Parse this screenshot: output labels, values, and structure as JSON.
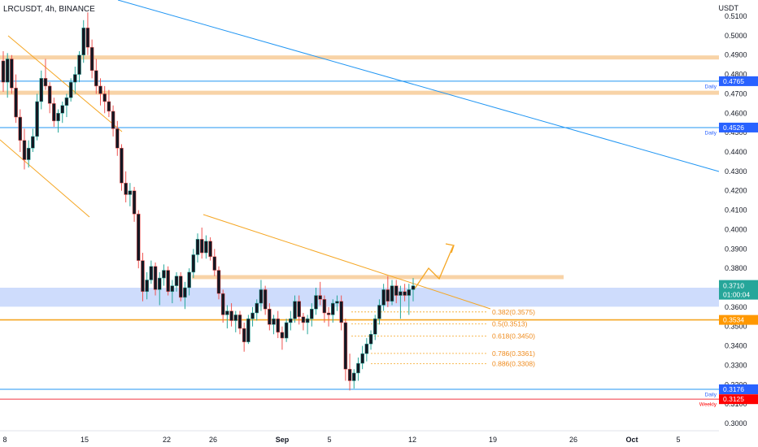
{
  "header": {
    "symbol_info": "LRCUSDT, 4h, BINANCE",
    "currency": "USDT"
  },
  "price_axis": {
    "ticks": [
      "0.5100",
      "0.5000",
      "0.4900",
      "0.4800",
      "0.4700",
      "0.4600",
      "0.4500",
      "0.4400",
      "0.4300",
      "0.4200",
      "0.4100",
      "0.4000",
      "0.3900",
      "0.3800",
      "0.3700",
      "0.3600",
      "0.3500",
      "0.3400",
      "0.3300",
      "0.3200",
      "0.3100",
      "0.3000"
    ]
  },
  "time_axis": {
    "labels": [
      "8",
      "15",
      "22",
      "26",
      "Sep",
      "5",
      "12",
      "19",
      "26",
      "Oct",
      "5"
    ]
  },
  "price_tags": [
    {
      "label": "0.4765",
      "note": "Daily",
      "color": "#2962ff"
    },
    {
      "label": "0.4526",
      "note": "Daily",
      "color": "#2962ff"
    },
    {
      "label": "0.3710",
      "sublabel": "01:00:04",
      "color": "#26a69a"
    },
    {
      "label": "0.3534",
      "color": "#ff9800"
    },
    {
      "label": "0.3176",
      "note": "Daily",
      "color": "#2962ff"
    },
    {
      "label": "0.3125",
      "note": "Weekly",
      "color": "#ff0000"
    }
  ],
  "fib_levels": [
    {
      "label": "0.382(0.3575)"
    },
    {
      "label": "0.5(0.3513)"
    },
    {
      "label": "0.618(0.3450)"
    },
    {
      "label": "0.786(0.3361)"
    },
    {
      "label": "0.886(0.3308)"
    }
  ],
  "colors": {
    "up": "#26a69a",
    "down": "#ef5350",
    "candle_body": "#131722",
    "zone_orange": "#f5c489",
    "zone_blue": "#b9cdfb",
    "line_blue": "#2196f3",
    "line_orange": "#f5a623",
    "line_red": "#f23645"
  },
  "chart_data": {
    "type": "candlestick",
    "title": "LRCUSDT, 4h, BINANCE",
    "ylabel": "USDT",
    "ylim": [
      0.297,
      0.5125
    ],
    "y_scale": "linear",
    "grid": false,
    "candles": [
      [
        0.487,
        0.492,
        0.471,
        0.476
      ],
      [
        0.476,
        0.491,
        0.468,
        0.488
      ],
      [
        0.488,
        0.49,
        0.47,
        0.473
      ],
      [
        0.473,
        0.48,
        0.455,
        0.458
      ],
      [
        0.458,
        0.462,
        0.44,
        0.446
      ],
      [
        0.446,
        0.452,
        0.431,
        0.436
      ],
      [
        0.436,
        0.446,
        0.432,
        0.442
      ],
      [
        0.442,
        0.452,
        0.44,
        0.448
      ],
      [
        0.448,
        0.47,
        0.446,
        0.466
      ],
      [
        0.466,
        0.482,
        0.462,
        0.478
      ],
      [
        0.478,
        0.488,
        0.472,
        0.474
      ],
      [
        0.474,
        0.476,
        0.46,
        0.465
      ],
      [
        0.465,
        0.468,
        0.453,
        0.456
      ],
      [
        0.456,
        0.462,
        0.45,
        0.46
      ],
      [
        0.46,
        0.466,
        0.455,
        0.464
      ],
      [
        0.464,
        0.47,
        0.458,
        0.468
      ],
      [
        0.468,
        0.478,
        0.466,
        0.476
      ],
      [
        0.476,
        0.484,
        0.47,
        0.48
      ],
      [
        0.48,
        0.492,
        0.476,
        0.49
      ],
      [
        0.49,
        0.508,
        0.486,
        0.504
      ],
      [
        0.504,
        0.512,
        0.49,
        0.494
      ],
      [
        0.494,
        0.498,
        0.478,
        0.482
      ],
      [
        0.482,
        0.488,
        0.47,
        0.474
      ],
      [
        0.474,
        0.478,
        0.464,
        0.47
      ],
      [
        0.47,
        0.474,
        0.46,
        0.466
      ],
      [
        0.466,
        0.472,
        0.458,
        0.461
      ],
      [
        0.461,
        0.464,
        0.448,
        0.452
      ],
      [
        0.452,
        0.456,
        0.438,
        0.442
      ],
      [
        0.442,
        0.444,
        0.42,
        0.424
      ],
      [
        0.424,
        0.43,
        0.414,
        0.418
      ],
      [
        0.418,
        0.424,
        0.412,
        0.42
      ],
      [
        0.42,
        0.422,
        0.404,
        0.408
      ],
      [
        0.408,
        0.41,
        0.38,
        0.384
      ],
      [
        0.384,
        0.388,
        0.363,
        0.368
      ],
      [
        0.368,
        0.378,
        0.364,
        0.374
      ],
      [
        0.374,
        0.384,
        0.372,
        0.381
      ],
      [
        0.381,
        0.383,
        0.366,
        0.369
      ],
      [
        0.369,
        0.378,
        0.361,
        0.375
      ],
      [
        0.375,
        0.382,
        0.371,
        0.379
      ],
      [
        0.379,
        0.381,
        0.366,
        0.368
      ],
      [
        0.368,
        0.374,
        0.362,
        0.371
      ],
      [
        0.371,
        0.378,
        0.368,
        0.376
      ],
      [
        0.376,
        0.378,
        0.363,
        0.365
      ],
      [
        0.365,
        0.373,
        0.359,
        0.37
      ],
      [
        0.37,
        0.38,
        0.366,
        0.378
      ],
      [
        0.378,
        0.39,
        0.375,
        0.387
      ],
      [
        0.387,
        0.398,
        0.383,
        0.395
      ],
      [
        0.395,
        0.401,
        0.385,
        0.388
      ],
      [
        0.388,
        0.397,
        0.385,
        0.394
      ],
      [
        0.394,
        0.396,
        0.384,
        0.386
      ],
      [
        0.386,
        0.39,
        0.376,
        0.379
      ],
      [
        0.379,
        0.381,
        0.364,
        0.367
      ],
      [
        0.367,
        0.369,
        0.352,
        0.356
      ],
      [
        0.356,
        0.361,
        0.349,
        0.358
      ],
      [
        0.358,
        0.362,
        0.35,
        0.353
      ],
      [
        0.353,
        0.358,
        0.347,
        0.356
      ],
      [
        0.356,
        0.358,
        0.346,
        0.349
      ],
      [
        0.349,
        0.352,
        0.337,
        0.342
      ],
      [
        0.342,
        0.356,
        0.341,
        0.354
      ],
      [
        0.354,
        0.36,
        0.35,
        0.357
      ],
      [
        0.357,
        0.364,
        0.353,
        0.362
      ],
      [
        0.362,
        0.374,
        0.358,
        0.369
      ],
      [
        0.369,
        0.371,
        0.356,
        0.359
      ],
      [
        0.359,
        0.362,
        0.348,
        0.351
      ],
      [
        0.351,
        0.356,
        0.346,
        0.354
      ],
      [
        0.354,
        0.358,
        0.344,
        0.347
      ],
      [
        0.347,
        0.35,
        0.338,
        0.344
      ],
      [
        0.344,
        0.354,
        0.342,
        0.352
      ],
      [
        0.352,
        0.358,
        0.348,
        0.354
      ],
      [
        0.354,
        0.366,
        0.352,
        0.363
      ],
      [
        0.363,
        0.366,
        0.351,
        0.355
      ],
      [
        0.355,
        0.357,
        0.348,
        0.352
      ],
      [
        0.352,
        0.356,
        0.346,
        0.354
      ],
      [
        0.354,
        0.362,
        0.35,
        0.359
      ],
      [
        0.359,
        0.37,
        0.356,
        0.366
      ],
      [
        0.366,
        0.373,
        0.361,
        0.364
      ],
      [
        0.364,
        0.366,
        0.352,
        0.357
      ],
      [
        0.357,
        0.36,
        0.35,
        0.356
      ],
      [
        0.356,
        0.364,
        0.352,
        0.362
      ],
      [
        0.362,
        0.366,
        0.358,
        0.363
      ],
      [
        0.363,
        0.366,
        0.348,
        0.352
      ],
      [
        0.352,
        0.354,
        0.322,
        0.328
      ],
      [
        0.328,
        0.336,
        0.317,
        0.322
      ],
      [
        0.322,
        0.328,
        0.318,
        0.326
      ],
      [
        0.326,
        0.334,
        0.322,
        0.331
      ],
      [
        0.331,
        0.34,
        0.328,
        0.336
      ],
      [
        0.336,
        0.344,
        0.332,
        0.341
      ],
      [
        0.341,
        0.348,
        0.338,
        0.346
      ],
      [
        0.346,
        0.356,
        0.343,
        0.354
      ],
      [
        0.354,
        0.364,
        0.351,
        0.361
      ],
      [
        0.361,
        0.372,
        0.358,
        0.369
      ],
      [
        0.369,
        0.376,
        0.36,
        0.363
      ],
      [
        0.363,
        0.374,
        0.361,
        0.371
      ],
      [
        0.371,
        0.374,
        0.362,
        0.366
      ],
      [
        0.366,
        0.371,
        0.354,
        0.368
      ],
      [
        0.368,
        0.372,
        0.363,
        0.366
      ],
      [
        0.366,
        0.372,
        0.356,
        0.369
      ],
      [
        0.369,
        0.375,
        0.363,
        0.371
      ]
    ],
    "horizontal_levels": [
      {
        "price": 0.4765,
        "note": "Daily"
      },
      {
        "price": 0.4526,
        "note": "Daily"
      },
      {
        "price": 0.3534
      },
      {
        "price": 0.3176,
        "note": "Daily"
      },
      {
        "price": 0.3125,
        "note": "Weekly"
      }
    ],
    "zones": [
      {
        "from": 0.4878,
        "to": 0.4898
      },
      {
        "from": 0.4696,
        "to": 0.4716
      },
      {
        "from": 0.3745,
        "to": 0.3765
      },
      {
        "from": 0.3602,
        "to": 0.37
      }
    ],
    "fib_retracement": [
      {
        "ratio": 0.382,
        "price": 0.3575
      },
      {
        "ratio": 0.5,
        "price": 0.3513
      },
      {
        "ratio": 0.618,
        "price": 0.345
      },
      {
        "ratio": 0.786,
        "price": 0.3361
      },
      {
        "ratio": 0.886,
        "price": 0.3308
      }
    ],
    "last_price": 0.371,
    "countdown": "01:00:04"
  }
}
